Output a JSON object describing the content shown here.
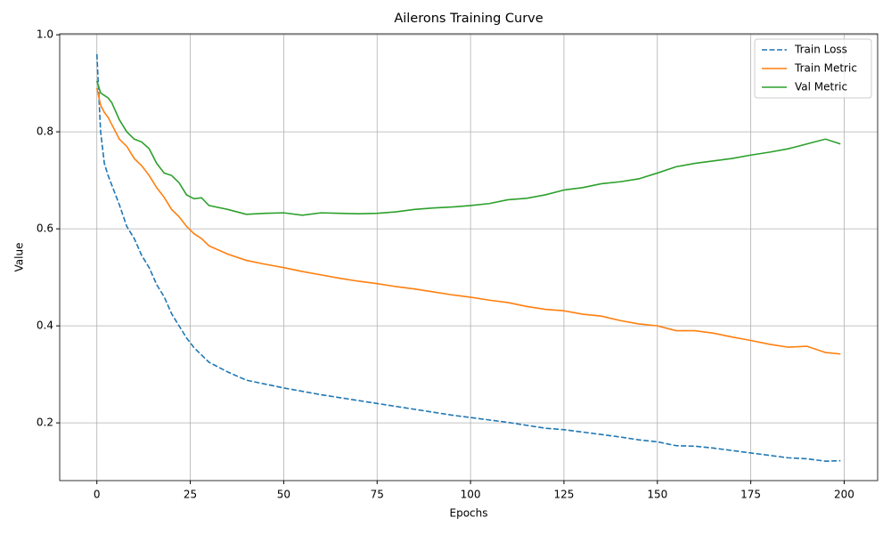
{
  "chart_data": {
    "type": "line",
    "title": "Ailerons Training Curve",
    "x_label": "Epochs",
    "y_label": "Value",
    "x": [
      0,
      1,
      2,
      3,
      4,
      6,
      8,
      10,
      12,
      14,
      16,
      18,
      20,
      22,
      24,
      26,
      28,
      30,
      35,
      40,
      45,
      50,
      55,
      60,
      65,
      70,
      75,
      80,
      85,
      90,
      95,
      100,
      105,
      110,
      115,
      120,
      125,
      130,
      135,
      140,
      145,
      150,
      155,
      160,
      165,
      170,
      175,
      180,
      185,
      190,
      195,
      199
    ],
    "series": [
      {
        "name": "Train Loss",
        "color": "#1f77b4",
        "linestyle": "dashed",
        "values": [
          0.96,
          0.8,
          0.735,
          0.71,
          0.69,
          0.65,
          0.605,
          0.58,
          0.545,
          0.52,
          0.485,
          0.46,
          0.425,
          0.4,
          0.375,
          0.355,
          0.34,
          0.325,
          0.305,
          0.288,
          0.28,
          0.272,
          0.265,
          0.258,
          0.252,
          0.246,
          0.24,
          0.234,
          0.228,
          0.222,
          0.216,
          0.211,
          0.206,
          0.201,
          0.195,
          0.189,
          0.186,
          0.181,
          0.176,
          0.171,
          0.165,
          0.161,
          0.153,
          0.152,
          0.148,
          0.143,
          0.138,
          0.133,
          0.128,
          0.126,
          0.121,
          0.122
        ]
      },
      {
        "name": "Train Metric",
        "color": "#ff7f0e",
        "linestyle": "solid",
        "values": [
          0.89,
          0.855,
          0.84,
          0.83,
          0.815,
          0.785,
          0.77,
          0.745,
          0.73,
          0.71,
          0.685,
          0.665,
          0.64,
          0.625,
          0.605,
          0.59,
          0.58,
          0.565,
          0.548,
          0.535,
          0.527,
          0.52,
          0.512,
          0.505,
          0.498,
          0.492,
          0.487,
          0.481,
          0.476,
          0.47,
          0.464,
          0.459,
          0.453,
          0.448,
          0.44,
          0.434,
          0.431,
          0.424,
          0.42,
          0.411,
          0.404,
          0.4,
          0.39,
          0.39,
          0.385,
          0.377,
          0.37,
          0.362,
          0.356,
          0.358,
          0.345,
          0.342
        ]
      },
      {
        "name": "Val Metric",
        "color": "#2ca02c",
        "linestyle": "solid",
        "values": [
          0.905,
          0.88,
          0.875,
          0.87,
          0.86,
          0.825,
          0.8,
          0.785,
          0.779,
          0.765,
          0.735,
          0.715,
          0.71,
          0.695,
          0.67,
          0.662,
          0.664,
          0.648,
          0.64,
          0.63,
          0.632,
          0.633,
          0.628,
          0.633,
          0.632,
          0.631,
          0.632,
          0.635,
          0.64,
          0.643,
          0.645,
          0.648,
          0.652,
          0.66,
          0.663,
          0.67,
          0.68,
          0.685,
          0.693,
          0.697,
          0.703,
          0.715,
          0.728,
          0.735,
          0.74,
          0.745,
          0.752,
          0.758,
          0.765,
          0.775,
          0.785,
          0.775
        ]
      }
    ],
    "xlim": [
      -9.95,
      208.95
    ],
    "xticks": [
      0,
      25,
      50,
      75,
      100,
      125,
      150,
      175,
      200
    ],
    "ylim": [
      0.081,
      1.002
    ],
    "yticks": [
      0.2,
      0.4,
      0.6,
      0.8,
      {
        "value": 1,
        "label": "1.0"
      }
    ],
    "grid": true,
    "legend": "upper right"
  }
}
